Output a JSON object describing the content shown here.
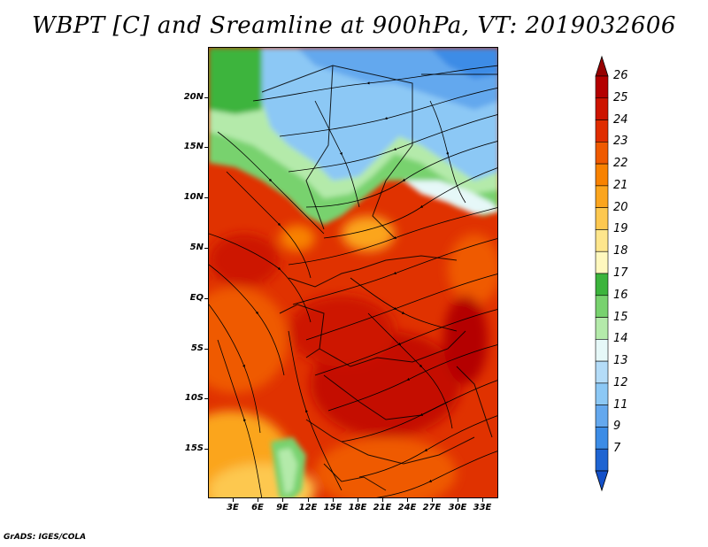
{
  "title": "WBPT [C] and Sreamline at 900hPa, VT: 2019032606",
  "footer": "GrADS: IGES/COLA",
  "map": {
    "variable": "Wet-bulb potential temperature with streamlines",
    "level": "900hPa",
    "lat_range": [
      -20,
      25
    ],
    "lon_range": [
      0,
      35
    ],
    "y_ticks": [
      {
        "label": "20N",
        "lat": 20
      },
      {
        "label": "15N",
        "lat": 15
      },
      {
        "label": "10N",
        "lat": 10
      },
      {
        "label": "5N",
        "lat": 5
      },
      {
        "label": "EQ",
        "lat": 0
      },
      {
        "label": "5S",
        "lat": -5
      },
      {
        "label": "10S",
        "lat": -10
      },
      {
        "label": "15S",
        "lat": -15
      }
    ],
    "x_ticks": [
      {
        "label": "3E",
        "lon": 3
      },
      {
        "label": "6E",
        "lon": 6
      },
      {
        "label": "9E",
        "lon": 9
      },
      {
        "label": "12E",
        "lon": 12
      },
      {
        "label": "15E",
        "lon": 15
      },
      {
        "label": "18E",
        "lon": 18
      },
      {
        "label": "21E",
        "lon": 21
      },
      {
        "label": "24E",
        "lon": 24
      },
      {
        "label": "27E",
        "lon": 27
      },
      {
        "label": "30E",
        "lon": 30
      },
      {
        "label": "33E",
        "lon": 33
      }
    ]
  },
  "colorbar": {
    "levels": [
      {
        "label": "26",
        "color": "#b40000"
      },
      {
        "label": "25",
        "color": "#cd1400"
      },
      {
        "label": "24",
        "color": "#e02d00"
      },
      {
        "label": "23",
        "color": "#ef5a00"
      },
      {
        "label": "22",
        "color": "#f88200"
      },
      {
        "label": "21",
        "color": "#fba51e"
      },
      {
        "label": "20",
        "color": "#fdc850"
      },
      {
        "label": "19",
        "color": "#fee68c"
      },
      {
        "label": "18",
        "color": "#fff8be"
      },
      {
        "label": "17",
        "color": "#3cb43c"
      },
      {
        "label": "16",
        "color": "#78d26e"
      },
      {
        "label": "15",
        "color": "#b4eaaa"
      },
      {
        "label": "14",
        "color": "#e6f8f8"
      },
      {
        "label": "13",
        "color": "#b4dcf8"
      },
      {
        "label": "12",
        "color": "#8cc8f5"
      },
      {
        "label": "11",
        "color": "#64a8ee"
      },
      {
        "label": "9",
        "color": "#3c8ce6"
      },
      {
        "label": "7",
        "color": "#1e64d2"
      }
    ],
    "over_color": "#960000",
    "under_color": "#1450c8"
  }
}
